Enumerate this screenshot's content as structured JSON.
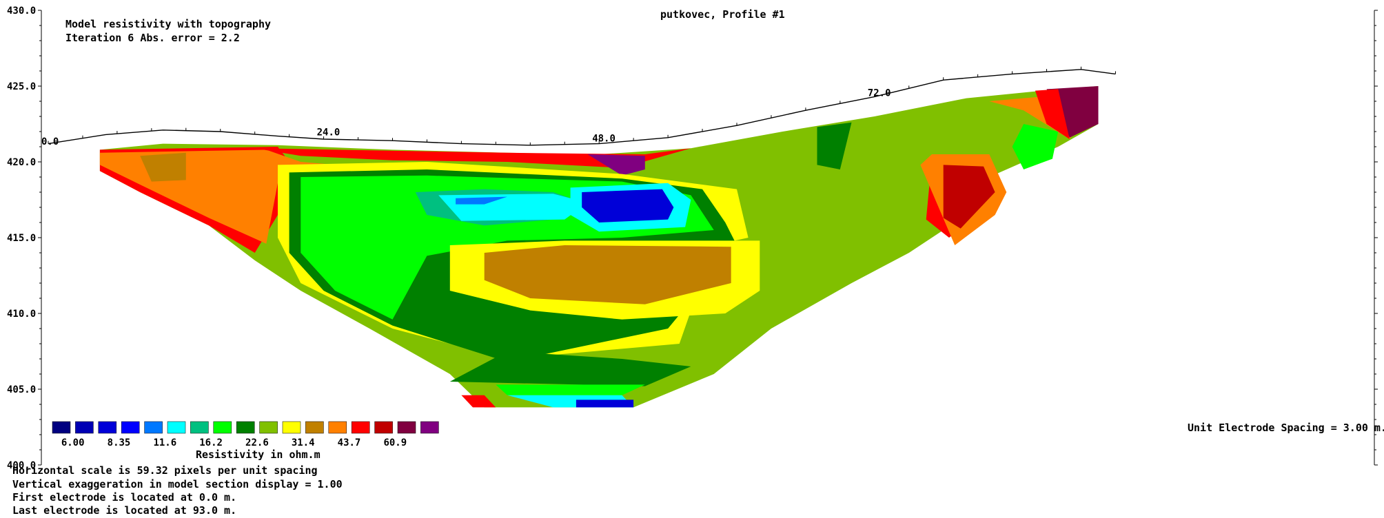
{
  "chart_data": {
    "type": "heatmap",
    "title": "putkovec, Profile #1",
    "subtitle_lines": [
      "Model resistivity with topography",
      "Iteration 6 Abs. error = 2.2"
    ],
    "xlabel": "",
    "ylabel": "",
    "x_tick_labels": [
      "0.0",
      "24.0",
      "48.0",
      "72.0"
    ],
    "y_tick_labels": [
      "430.0",
      "425.0",
      "420.0",
      "415.0",
      "410.0",
      "405.0",
      "400.0"
    ],
    "ylim": [
      400,
      430
    ],
    "units": "m",
    "unit_electrode_spacing": "Unit Electrode Spacing = 3.00 m.",
    "legend": {
      "title": "Resistivity in ohm.m",
      "labels": [
        "6.00",
        "8.35",
        "11.6",
        "16.2",
        "22.6",
        "31.4",
        "43.7",
        "60.9"
      ],
      "colors": [
        "#000080",
        "#0000b4",
        "#0000d8",
        "#0000ff",
        "#0078ff",
        "#00ffff",
        "#00c080",
        "#00ff00",
        "#008000",
        "#80c000",
        "#ffff00",
        "#c08000",
        "#ff8000",
        "#ff0000",
        "#c00000",
        "#800040",
        "#800080"
      ]
    },
    "topography": [
      [
        0,
        421.2
      ],
      [
        5,
        421.8
      ],
      [
        10,
        422.1
      ],
      [
        15,
        422.0
      ],
      [
        20,
        421.7
      ],
      [
        24,
        421.5
      ],
      [
        30,
        421.4
      ],
      [
        36,
        421.2
      ],
      [
        42,
        421.1
      ],
      [
        48,
        421.2
      ],
      [
        54,
        421.6
      ],
      [
        60,
        422.4
      ],
      [
        66,
        423.4
      ],
      [
        72,
        424.3
      ],
      [
        78,
        425.4
      ],
      [
        84,
        425.8
      ],
      [
        90,
        426.1
      ],
      [
        93,
        425.8
      ]
    ],
    "model_zones": [
      {
        "name": "near-surface red",
        "color": "#ff0000",
        "x": [
          5,
          88
        ],
        "y": [
          404,
          425
        ]
      },
      {
        "name": "main orange",
        "color": "#ff8000",
        "x": [
          5,
          24
        ],
        "y": [
          416,
          421
        ]
      },
      {
        "name": "shallow conductor (green)",
        "color": "#00ff00",
        "x": [
          19,
          60
        ],
        "y": [
          406,
          419
        ]
      },
      {
        "name": "cyan low",
        "color": "#00ffff",
        "x": [
          37,
          50
        ],
        "y": [
          415.5,
          418
        ]
      },
      {
        "name": "blue low",
        "color": "#0000d8",
        "x": [
          50,
          58
        ],
        "y": [
          416,
          418.5
        ]
      },
      {
        "name": "high-resistivity body (brown)",
        "color": "#c08000",
        "x": [
          43,
          63
        ],
        "y": [
          410.5,
          414.5
        ]
      },
      {
        "name": "right red anomaly",
        "color": "#c00000",
        "x": [
          78,
          83
        ],
        "y": [
          415,
          420
        ]
      },
      {
        "name": "right purple cap",
        "color": "#800040",
        "x": [
          86,
          92.5
        ],
        "y": [
          421.5,
          425
        ]
      }
    ]
  },
  "footer": {
    "lines": [
      "Horizontal scale is 59.32 pixels per unit spacing",
      "Vertical exaggeration in model section display = 1.00",
      "First electrode is located at 0.0  m.",
      "Last electrode is located at 93.0 m."
    ]
  }
}
